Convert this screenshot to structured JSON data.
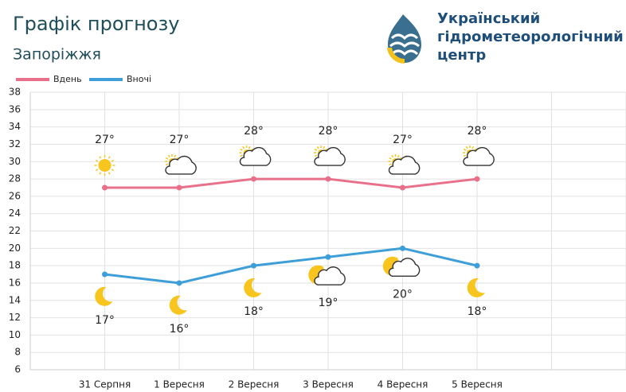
{
  "chart_data": {
    "type": "line",
    "title": "Графік прогнозу",
    "subtitle": "Запоріжжя",
    "categories": [
      "31 Серпня",
      "1 Вересня",
      "2 Вересня",
      "3 Вересня",
      "4 Вересня",
      "5 Вересня"
    ],
    "series": [
      {
        "name": "Вдень",
        "color": "#e8708a",
        "values": [
          27,
          27,
          28,
          28,
          27,
          28
        ],
        "value_labels": [
          "27°",
          "27°",
          "28°",
          "28°",
          "27°",
          "28°"
        ]
      },
      {
        "name": "Вночі",
        "color": "#3e9fd8",
        "values": [
          17,
          16,
          18,
          19,
          20,
          18
        ],
        "value_labels": [
          "17°",
          "16°",
          "18°",
          "19°",
          "20°",
          "18°"
        ]
      }
    ],
    "ylim": [
      6,
      38
    ],
    "yticks": [
      6,
      8,
      10,
      12,
      14,
      16,
      18,
      20,
      22,
      24,
      26,
      28,
      30,
      32,
      34,
      36,
      38
    ],
    "grid": true,
    "legend": "top-left"
  },
  "logo": {
    "lines": [
      "Український",
      "гідрометеорологічний",
      "центр"
    ]
  }
}
